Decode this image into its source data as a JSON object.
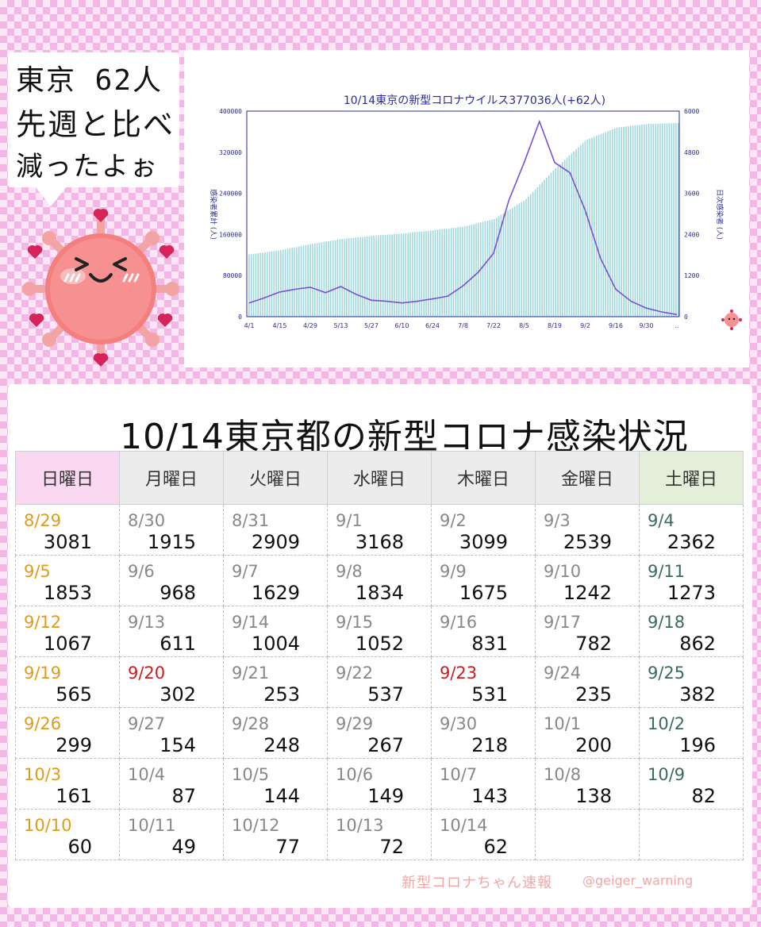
{
  "bubble": {
    "line1": "東京 62人",
    "line2": "先週と比べ",
    "line3": "減ったよぉ"
  },
  "chart_data": {
    "type": "bar",
    "title": "10/14東京の新型コロナウイルス377036人(+62人)",
    "ylabel": "感染者累計 (人)",
    "ylabel_right": "日次感染者 (人)",
    "ylim": [
      0,
      400000
    ],
    "ylim_right": [
      0,
      6000
    ],
    "y_ticks": [
      "0",
      "80000",
      "160000",
      "240000",
      "320000",
      "400000"
    ],
    "y_ticks_right": [
      "0",
      "1200",
      "2400",
      "3600",
      "4800",
      "6000"
    ],
    "x_ticks": [
      "4/1",
      "4/15",
      "4/29",
      "5/13",
      "5/27",
      "6/10",
      "6/24",
      "7/8",
      "7/22",
      "8/5",
      "8/19",
      "9/2",
      "9/16",
      "9/30",
      ".."
    ],
    "series": [
      {
        "name": "累計",
        "kind": "bar",
        "x": [
          "4/1",
          "4/15",
          "4/29",
          "5/13",
          "5/27",
          "6/10",
          "6/24",
          "7/8",
          "7/22",
          "8/5",
          "8/19",
          "9/2",
          "9/16",
          "9/30",
          "10/14"
        ],
        "values": [
          121000,
          129000,
          141000,
          151000,
          157000,
          162000,
          168000,
          175000,
          190000,
          227000,
          289000,
          344000,
          368000,
          375000,
          377036
        ]
      },
      {
        "name": "日次",
        "kind": "line",
        "x": [
          "4/1",
          "4/8",
          "4/15",
          "4/22",
          "4/29",
          "5/6",
          "5/13",
          "5/20",
          "5/27",
          "6/3",
          "6/10",
          "6/17",
          "6/24",
          "7/1",
          "7/8",
          "7/15",
          "7/22",
          "7/29",
          "8/5",
          "8/12",
          "8/19",
          "8/26",
          "9/2",
          "9/9",
          "9/16",
          "9/23",
          "9/30",
          "10/7",
          "10/14"
        ],
        "values": [
          400,
          550,
          720,
          800,
          860,
          700,
          880,
          650,
          480,
          450,
          400,
          450,
          520,
          600,
          900,
          1300,
          1850,
          3400,
          4500,
          5700,
          4500,
          4200,
          3100,
          1700,
          800,
          450,
          250,
          140,
          62
        ]
      }
    ],
    "colors": {
      "bar": "#9fd7de",
      "line": "#7a4fd6",
      "axis": "#2a2a9a"
    }
  },
  "panel": {
    "title": "10/14東京都の新型コロナ感染状況"
  },
  "calendar": {
    "headers": [
      "日曜日",
      "月曜日",
      "火曜日",
      "水曜日",
      "木曜日",
      "金曜日",
      "土曜日"
    ],
    "weeks": [
      [
        [
          "8/29",
          "3081"
        ],
        [
          "8/30",
          "1915"
        ],
        [
          "8/31",
          "2909"
        ],
        [
          "9/1",
          "3168"
        ],
        [
          "9/2",
          "3099"
        ],
        [
          "9/3",
          "2539"
        ],
        [
          "9/4",
          "2362"
        ]
      ],
      [
        [
          "9/5",
          "1853"
        ],
        [
          "9/6",
          "968"
        ],
        [
          "9/7",
          "1629"
        ],
        [
          "9/8",
          "1834"
        ],
        [
          "9/9",
          "1675"
        ],
        [
          "9/10",
          "1242"
        ],
        [
          "9/11",
          "1273"
        ]
      ],
      [
        [
          "9/12",
          "1067"
        ],
        [
          "9/13",
          "611"
        ],
        [
          "9/14",
          "1004"
        ],
        [
          "9/15",
          "1052"
        ],
        [
          "9/16",
          "831"
        ],
        [
          "9/17",
          "782"
        ],
        [
          "9/18",
          "862"
        ]
      ],
      [
        [
          "9/19",
          "565"
        ],
        [
          "9/20",
          "302"
        ],
        [
          "9/21",
          "253"
        ],
        [
          "9/22",
          "537"
        ],
        [
          "9/23",
          "531"
        ],
        [
          "9/24",
          "235"
        ],
        [
          "9/25",
          "382"
        ]
      ],
      [
        [
          "9/26",
          "299"
        ],
        [
          "9/27",
          "154"
        ],
        [
          "9/28",
          "248"
        ],
        [
          "9/29",
          "267"
        ],
        [
          "9/30",
          "218"
        ],
        [
          "10/1",
          "200"
        ],
        [
          "10/2",
          "196"
        ]
      ],
      [
        [
          "10/3",
          "161"
        ],
        [
          "10/4",
          "87"
        ],
        [
          "10/5",
          "144"
        ],
        [
          "10/6",
          "149"
        ],
        [
          "10/7",
          "143"
        ],
        [
          "10/8",
          "138"
        ],
        [
          "10/9",
          "82"
        ]
      ],
      [
        [
          "10/10",
          "60"
        ],
        [
          "10/11",
          "49"
        ],
        [
          "10/12",
          "77"
        ],
        [
          "10/13",
          "72"
        ],
        [
          "10/14",
          "62"
        ],
        [
          "",
          ""
        ],
        [
          "",
          ""
        ]
      ]
    ],
    "holidays": [
      "9/20",
      "9/23"
    ],
    "colors": {
      "sunday": "#e09a1c",
      "saturday": "#3a6a5d",
      "holiday": "#c81e1e"
    }
  },
  "footer": {
    "credit": "新型コロナちゃん速報",
    "handle": "@geiger_warning"
  }
}
